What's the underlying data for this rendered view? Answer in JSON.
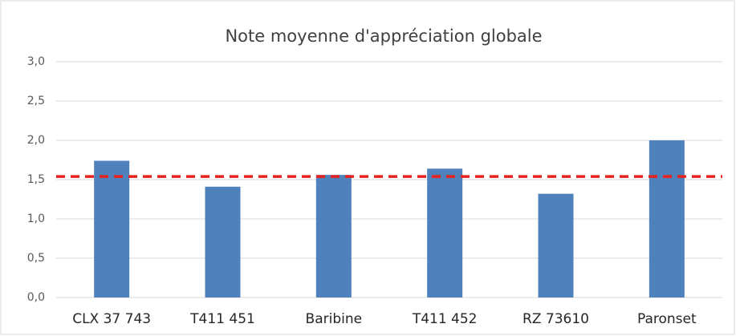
{
  "chart_data": {
    "type": "bar",
    "title": "Note moyenne d'appréciation globale",
    "categories": [
      "CLX 37 743",
      "T411 451",
      "Baribine",
      "T411 452",
      "RZ 73610",
      "Paronset"
    ],
    "values": [
      1.74,
      1.41,
      1.56,
      1.64,
      1.32,
      2.0
    ],
    "color": "#4f81bd",
    "ylim": [
      0,
      3
    ],
    "yticks": [
      {
        "value": 0,
        "label": "0,0"
      },
      {
        "value": 0.5,
        "label": "0,5"
      },
      {
        "value": 1,
        "label": "1,0"
      },
      {
        "value": 1.5,
        "label": "1,5"
      },
      {
        "value": 2,
        "label": "2,0"
      },
      {
        "value": 2.5,
        "label": "2,5"
      },
      {
        "value": 3,
        "label": "3,0"
      }
    ],
    "grid": true,
    "reference_line": {
      "value": 1.54,
      "color": "#e8211d"
    }
  }
}
